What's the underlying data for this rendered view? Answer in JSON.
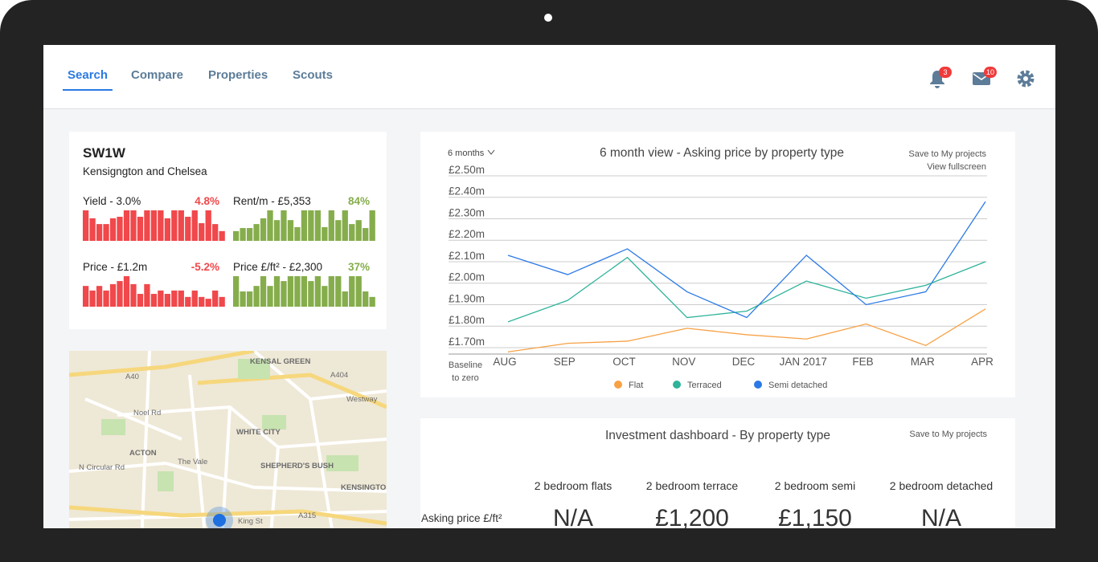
{
  "nav": {
    "tabs": [
      "Search",
      "Compare",
      "Properties",
      "Scouts"
    ],
    "notifications": "3",
    "messages": "10"
  },
  "area": {
    "code": "SW1W",
    "name": "Kensigngton and Chelsea",
    "metrics": [
      {
        "label": "Yield - 3.0%",
        "change": "4.8%",
        "color": "#f0484b",
        "values": [
          100,
          74,
          55,
          55,
          74,
          79,
          100,
          100,
          79,
          100,
          100,
          100,
          74,
          100,
          100,
          79,
          100,
          58,
          100,
          55,
          32
        ]
      },
      {
        "label": "Rent/m - £5,353",
        "change": "84%",
        "color": "#86ad4c",
        "values": [
          32,
          42,
          42,
          55,
          74,
          100,
          68,
          100,
          68,
          45,
          100,
          100,
          100,
          45,
          100,
          68,
          100,
          55,
          68,
          42,
          100
        ]
      },
      {
        "label": "Price - £1.2m",
        "change": "-5.2%",
        "color": "#f0484b",
        "values": [
          68,
          53,
          68,
          53,
          74,
          84,
          100,
          74,
          42,
          74,
          42,
          53,
          42,
          53,
          53,
          32,
          53,
          32,
          26,
          53,
          32
        ]
      },
      {
        "label": "Price £/ft² - £2,300",
        "change": "37%",
        "color": "#86ad4c",
        "values": [
          100,
          50,
          50,
          68,
          100,
          68,
          100,
          84,
          100,
          100,
          100,
          84,
          100,
          68,
          100,
          100,
          50,
          100,
          100,
          50,
          32
        ]
      }
    ]
  },
  "map": {
    "labels": [
      "KENSAL GREEN",
      "A40",
      "A404",
      "Noel Rd",
      "WHITE CITY",
      "ACTON",
      "The Vale",
      "SHEPHERD'S BUSH",
      "KENSINGTO",
      "Westway",
      "N Circular Rd",
      "King St",
      "A315"
    ]
  },
  "chart_data": {
    "type": "line",
    "title": "6 month view - Asking price by property type",
    "period": "6 months",
    "links": [
      "Save to My projects",
      "View fullscreen"
    ],
    "baseline": "Baseline to zero",
    "categories": [
      "AUG",
      "SEP",
      "OCT",
      "NOV",
      "DEC",
      "JAN 2017",
      "FEB",
      "MAR",
      "APR"
    ],
    "series": [
      {
        "name": "Flat",
        "color": "#f7a145",
        "values": [
          1.68,
          1.72,
          1.73,
          1.79,
          1.76,
          1.74,
          1.81,
          1.71,
          1.88
        ]
      },
      {
        "name": "Terraced",
        "color": "#2fb39b",
        "values": [
          1.82,
          1.92,
          2.12,
          1.84,
          1.87,
          2.01,
          1.93,
          1.99,
          2.1
        ]
      },
      {
        "name": "Semi detached",
        "color": "#2b79e6",
        "values": [
          2.13,
          2.04,
          2.16,
          1.96,
          1.84,
          2.13,
          1.9,
          1.96,
          2.38
        ]
      }
    ],
    "ylim": [
      1.67,
      2.5
    ],
    "yticks": [
      {
        "value": 1.7,
        "label": "£1.70m"
      },
      {
        "value": 1.8,
        "label": "£1.80m"
      },
      {
        "value": 1.9,
        "label": "£1.90m"
      },
      {
        "value": 2.0,
        "label": "£2.00m"
      },
      {
        "value": 2.1,
        "label": "£2.10m"
      },
      {
        "value": 2.2,
        "label": "£2.20m"
      },
      {
        "value": 2.3,
        "label": "£2.30m"
      },
      {
        "value": 2.4,
        "label": "£2.40m"
      },
      {
        "value": 2.5,
        "label": "£2.50m"
      }
    ],
    "grid": true
  },
  "dashboard": {
    "title": "Investment dashboard - By property type",
    "link": "Save to My projects",
    "columns": [
      "2 bedroom flats",
      "2 bedroom terrace",
      "2 bedroom semi",
      "2 bedroom detached"
    ],
    "row_label": "Asking price £/ft²",
    "values": [
      "N/A",
      "£1,200",
      "£1,150",
      "N/A"
    ]
  }
}
